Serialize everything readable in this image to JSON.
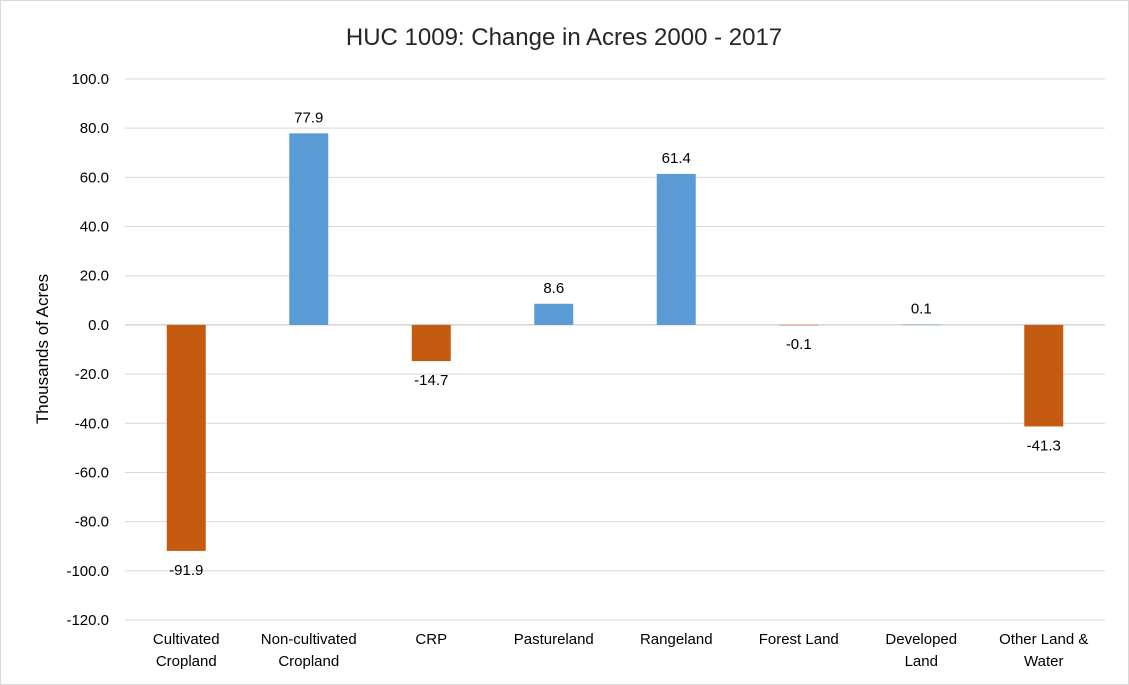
{
  "chart_data": {
    "type": "bar",
    "title": "HUC 1009: Change in Acres 2000 - 2017",
    "xlabel": "",
    "ylabel": "Thousands of Acres",
    "ylim": [
      -120,
      100
    ],
    "yticks": [
      100,
      80,
      60,
      40,
      20,
      0,
      -20,
      -40,
      -60,
      -80,
      -100,
      -120
    ],
    "ytick_labels": [
      "100.0",
      "80.0",
      "60.0",
      "40.0",
      "20.0",
      "0.0",
      "-20.0",
      "-40.0",
      "-60.0",
      "-80.0",
      "-100.0",
      "-120.0"
    ],
    "grid": true,
    "legend": "none",
    "categories": [
      [
        "Cultivated",
        "Cropland"
      ],
      [
        "Non-cultivated",
        "Cropland"
      ],
      [
        "CRP"
      ],
      [
        "Pastureland"
      ],
      [
        "Rangeland"
      ],
      [
        "Forest Land"
      ],
      [
        "Developed",
        "Land"
      ],
      [
        "Other Land &",
        "Water"
      ]
    ],
    "values": [
      -91.9,
      77.9,
      -14.7,
      8.6,
      61.4,
      -0.1,
      0.1,
      -41.3
    ],
    "data_labels": [
      "-91.9",
      "77.9",
      "-14.7",
      "8.6",
      "61.4",
      "-0.1",
      "0.1",
      "-41.3"
    ],
    "colors": {
      "positive": "#5b9bd5",
      "negative": "#c55a11",
      "grid": "#d9d9d9",
      "axis": "#bfbfbf"
    }
  }
}
